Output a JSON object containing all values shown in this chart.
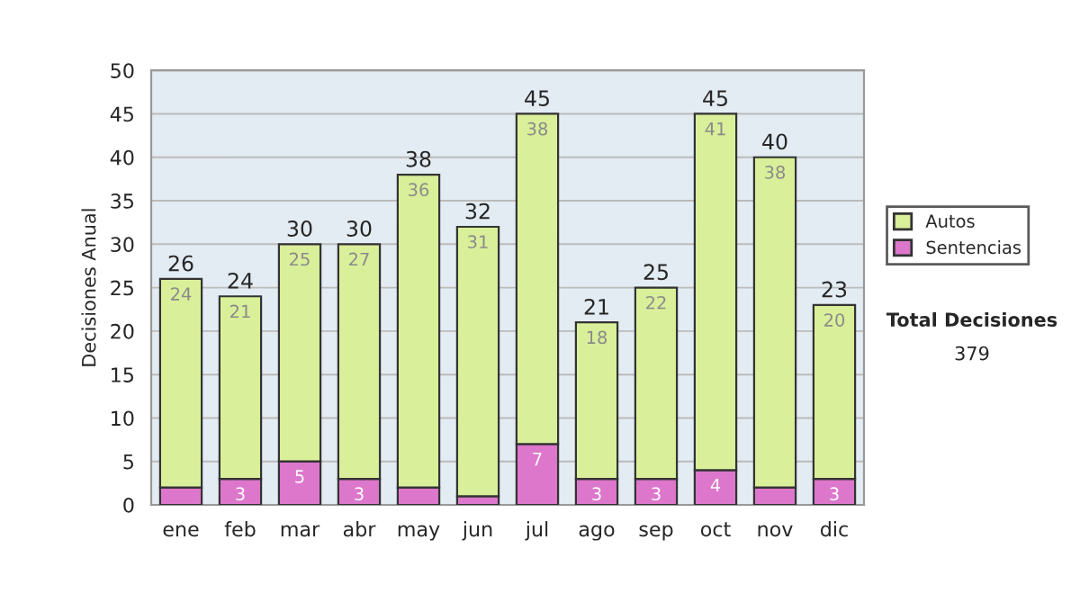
{
  "chart_data": {
    "type": "bar",
    "stacked": true,
    "ylabel": "Decisiones Anual",
    "categories": [
      "ene",
      "feb",
      "mar",
      "abr",
      "may",
      "jun",
      "jul",
      "ago",
      "sep",
      "oct",
      "nov",
      "dic"
    ],
    "series": [
      {
        "name": "Sentencias",
        "color": "#dd77cc",
        "values": [
          2,
          3,
          5,
          3,
          2,
          1,
          7,
          3,
          3,
          4,
          2,
          3
        ],
        "value_labels": [
          null,
          "3",
          "5",
          "3",
          null,
          null,
          "7",
          "3",
          "3",
          "4",
          null,
          "3"
        ]
      },
      {
        "name": "Autos",
        "color": "#d9ef9a",
        "values": [
          24,
          21,
          25,
          27,
          36,
          31,
          38,
          18,
          22,
          41,
          38,
          20
        ],
        "value_labels": [
          "24",
          "21",
          "25",
          "27",
          "36",
          "31",
          "38",
          "18",
          "22",
          "41",
          "38",
          "20"
        ]
      }
    ],
    "totals": [
      "26",
      "24",
      "30",
      "30",
      "38",
      "32",
      "45",
      "21",
      "25",
      "45",
      "40",
      "23"
    ],
    "ylim": [
      0,
      50
    ],
    "yticks": [
      0,
      5,
      10,
      15,
      20,
      25,
      30,
      35,
      40,
      45,
      50
    ],
    "grid": "y",
    "legend": "right",
    "annotations": [
      "Total Decisiones",
      "379"
    ]
  }
}
